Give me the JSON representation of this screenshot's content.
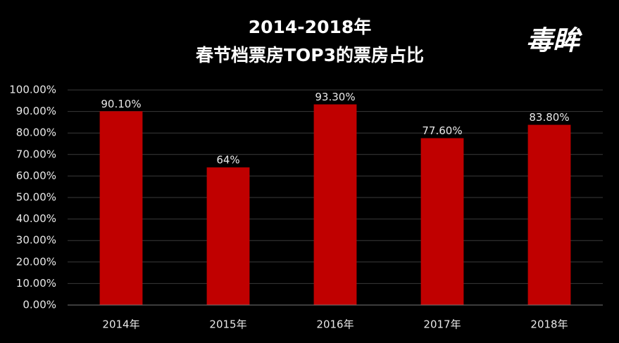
{
  "chart_data": {
    "type": "bar",
    "title": "2014-2018年",
    "subtitle": "春节档票房TOP3的票房占比",
    "watermark": "毒眸",
    "categories": [
      "2014年",
      "2015年",
      "2016年",
      "2017年",
      "2018年"
    ],
    "values": [
      90.1,
      64,
      93.3,
      77.6,
      83.8
    ],
    "value_labels": [
      "90.10%",
      "64%",
      "93.30%",
      "77.60%",
      "83.80%"
    ],
    "color": "#c00000",
    "ylim": [
      0,
      100
    ],
    "yticks": [
      {
        "value": 0,
        "label": "0.00%"
      },
      {
        "value": 10,
        "label": "10.00%"
      },
      {
        "value": 20,
        "label": "20.00%"
      },
      {
        "value": 30,
        "label": "30.00%"
      },
      {
        "value": 40,
        "label": "40.00%"
      },
      {
        "value": 50,
        "label": "50.00%"
      },
      {
        "value": 60,
        "label": "60.00%"
      },
      {
        "value": 70,
        "label": "70.00%"
      },
      {
        "value": 80,
        "label": "80.00%"
      },
      {
        "value": 90,
        "label": "90.00%"
      },
      {
        "value": 100,
        "label": "100.00%"
      }
    ],
    "grid": true
  }
}
